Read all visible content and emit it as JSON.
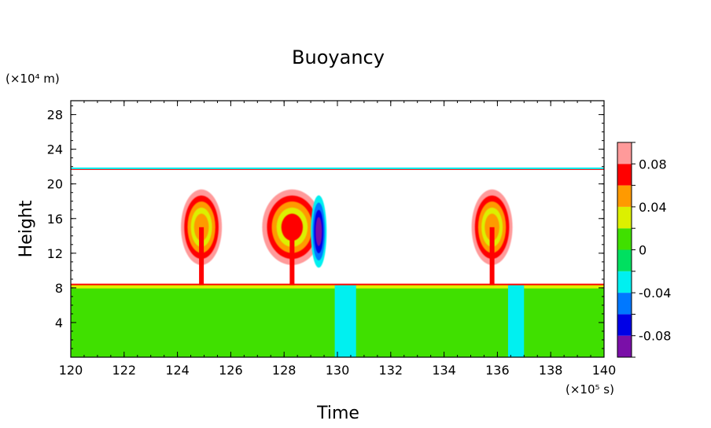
{
  "chart_data": {
    "type": "heatmap",
    "title": "Buoyancy",
    "xlabel": "Time",
    "ylabel": "Height",
    "x_unit": "(×10⁵ s)",
    "y_unit": "(×10⁴ m)",
    "xlim": [
      120,
      140
    ],
    "ylim": [
      0,
      29.6
    ],
    "x_ticks": [
      "120",
      "122",
      "124",
      "126",
      "128",
      "130",
      "132",
      "134",
      "136",
      "138",
      "140"
    ],
    "y_ticks": [
      "4",
      "8",
      "12",
      "16",
      "20",
      "24",
      "28"
    ],
    "colorbar": {
      "range": [
        -0.1,
        0.1
      ],
      "levels": [
        -0.1,
        -0.08,
        -0.06,
        -0.04,
        -0.02,
        0,
        0.02,
        0.04,
        0.06,
        0.08,
        0.1
      ],
      "colors": [
        "#7a0fa8",
        "#0000e6",
        "#0078ff",
        "#00f0f0",
        "#00e060",
        "#40e000",
        "#dcf000",
        "#ff9a00",
        "#ff0000",
        "#ff9a9a"
      ],
      "tick_labels": [
        "-0.08",
        "-0.04",
        "0",
        "0.04",
        "0.08"
      ],
      "tick_values": [
        -0.08,
        -0.04,
        0,
        0.04,
        0.08
      ]
    },
    "features": {
      "lower_layer_top_height": 8.3,
      "lower_layer_value": 0.01,
      "upper_band_height": 21.8,
      "negative_columns_x": [
        [
          129.9,
          130.7
        ],
        [
          136.4,
          137.0
        ]
      ],
      "plumes": [
        {
          "x_center": 124.9,
          "y_center": 15.0,
          "peak": 0.05
        },
        {
          "x_center": 128.3,
          "y_center": 15.0,
          "peak": 0.06
        },
        {
          "x_center": 129.3,
          "y_center": 14.5,
          "peak": -0.08
        },
        {
          "x_center": 135.8,
          "y_center": 15.0,
          "peak": 0.05
        }
      ]
    }
  }
}
